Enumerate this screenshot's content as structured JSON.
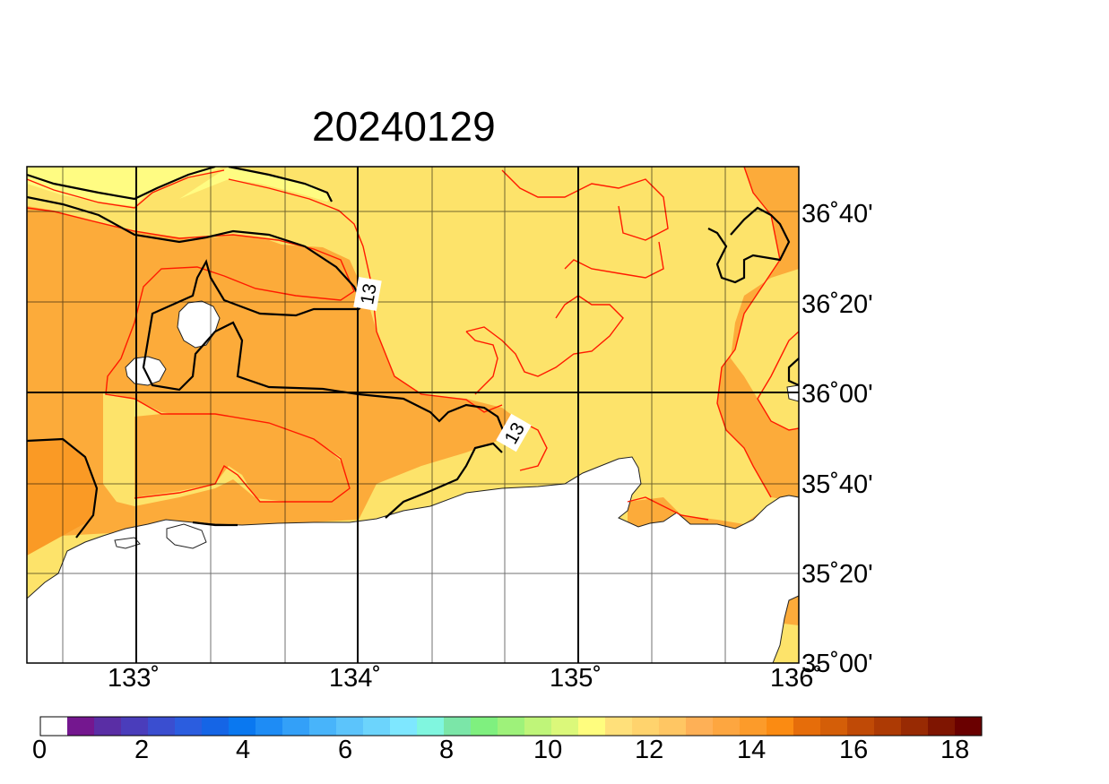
{
  "title": "20240129",
  "map": {
    "lon_ticks": [
      "133˚",
      "134˚",
      "135˚",
      "136˚"
    ],
    "lat_ticks": [
      "36˚40'",
      "36˚20'",
      "36˚00'",
      "35˚40'",
      "35˚20'",
      "35˚00'"
    ],
    "contour_labels": [
      "13",
      "13"
    ]
  },
  "colorbar": {
    "labels": [
      "0",
      "2",
      "4",
      "6",
      "8",
      "10",
      "12",
      "14",
      "16",
      "18"
    ],
    "colors": [
      "#ffffff",
      "#74178f",
      "#5a2ea5",
      "#4a3dbb",
      "#3a4ed0",
      "#2b5ddf",
      "#1565e6",
      "#0a78f0",
      "#1e8cf5",
      "#33a0f8",
      "#48b4fa",
      "#5cc4fb",
      "#6cd4fc",
      "#7ee7ff",
      "#80f6df",
      "#7be6a8",
      "#7ff07f",
      "#9ef27a",
      "#bff579",
      "#dbf87a",
      "#fffd7e",
      "#ffe07a",
      "#ffd36d",
      "#ffc663",
      "#feb056",
      "#fda640",
      "#fc9b2a",
      "#fb8b12",
      "#e66d0a",
      "#d45e08",
      "#c04a06",
      "#ad3a04",
      "#982a03",
      "#7f1501",
      "#6a0000"
    ]
  },
  "colors": {
    "light_yellow": "#fde36a",
    "pale_yellow": "#fffc82",
    "orange": "#fcab3a",
    "deep_orange": "#fa9a25",
    "red_contour": "#ff1a00",
    "land": "#ffffff"
  }
}
